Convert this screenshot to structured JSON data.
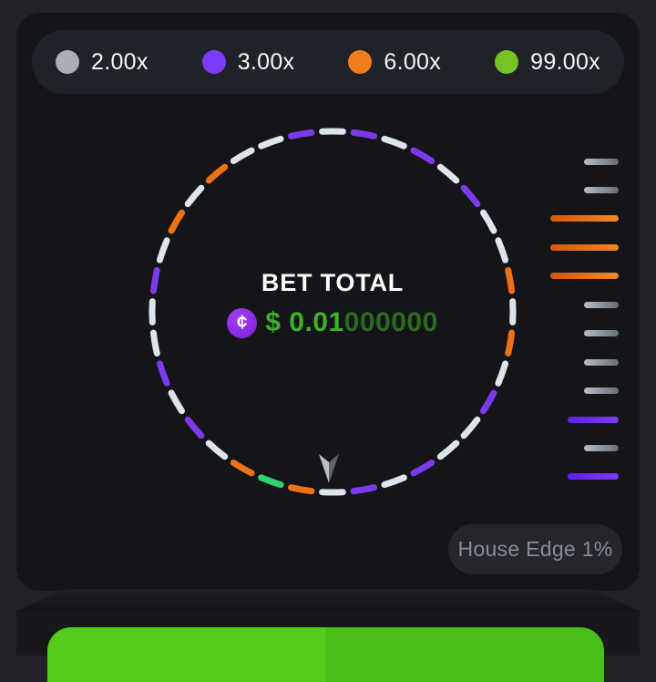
{
  "legend": {
    "items": [
      {
        "label": "2.00x",
        "color": "#a9afb9"
      },
      {
        "label": "3.00x",
        "color": "#7c3bfa"
      },
      {
        "label": "6.00x",
        "color": "#ef7d1d"
      },
      {
        "label": "99.00x",
        "color": "#74c225"
      }
    ]
  },
  "wheel": {
    "title": "BET TOTAL",
    "coin_symbol": "¢",
    "amount_highlight": "$ 0.01",
    "amount_trailing": "000000",
    "dash_colors": {
      "white": "#dde4ec",
      "purple": "#7c3aed",
      "orange": "#ee7214",
      "green": "#2ed36b"
    },
    "segments": [
      "white",
      "purple",
      "white",
      "purple",
      "white",
      "purple",
      "white",
      "white",
      "orange",
      "white",
      "orange",
      "white",
      "purple",
      "white",
      "white",
      "purple",
      "white",
      "purple",
      "white",
      "orange",
      "green",
      "orange",
      "white",
      "purple",
      "white",
      "purple",
      "white",
      "white",
      "purple",
      "white",
      "orange",
      "white",
      "orange",
      "white",
      "white",
      "purple"
    ],
    "pointer_colors": {
      "left": "#b9bec5",
      "right": "#5f646b"
    }
  },
  "history": {
    "bar_colors": {
      "gray": [
        "#b7bdc5",
        "#666d77"
      ],
      "orange": [
        "#d4570e",
        "#f5871e"
      ],
      "purple": [
        "#5f1fe8",
        "#7d3cf8"
      ]
    },
    "bar_widths": {
      "gray": 38,
      "orange": 75,
      "purple": 56
    },
    "bars": [
      "gray",
      "gray",
      "orange",
      "orange",
      "orange",
      "gray",
      "gray",
      "gray",
      "gray",
      "purple",
      "gray",
      "purple"
    ]
  },
  "footer": {
    "house_edge_label": "House Edge 1%"
  },
  "colors": {
    "page_bg": "#202227",
    "panel_bg": "#141519",
    "legend_pill_bg": "#1f2228",
    "house_pill_bg": "#24262c",
    "amount_highlight": "#3fb027",
    "amount_trailing": "#2b6b20",
    "bet_button_left": "#55cc1b",
    "bet_button_right": "#4abd17"
  }
}
